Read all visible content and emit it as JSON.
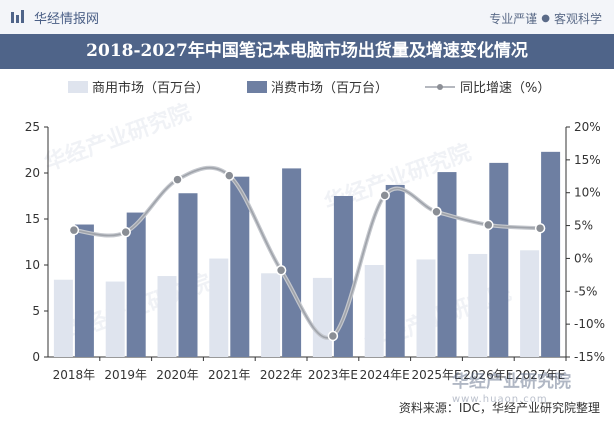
{
  "header": {
    "brand": "华经情报网",
    "slogan_left": "专业严谨",
    "slogan_right": "客观科学"
  },
  "source": "资料来源：IDC，华经产业研究院整理",
  "watermark": {
    "text": "华经产业研究院",
    "url": "www.huaon.com"
  },
  "chart_data": {
    "type": "bar",
    "title": "2018-2027年中国笔记本电脑市场出货量及增速变化情况",
    "categories": [
      "2018年",
      "2019年",
      "2020年",
      "2021年",
      "2022年",
      "2023年E",
      "2024年E",
      "2025年E",
      "2026年E",
      "2027年E"
    ],
    "series": [
      {
        "name": "商用市场（百万台）",
        "kind": "bar",
        "axis": "left",
        "color": "#dfe4ee",
        "values": [
          8.4,
          8.2,
          8.8,
          10.7,
          9.1,
          8.6,
          10.0,
          10.6,
          11.2,
          11.6
        ]
      },
      {
        "name": "消费市场（百万台）",
        "kind": "bar",
        "axis": "left",
        "color": "#6e7fa2",
        "values": [
          14.4,
          15.7,
          17.8,
          19.6,
          20.5,
          17.5,
          18.7,
          20.1,
          21.1,
          22.3
        ]
      },
      {
        "name": "同比增速（%）",
        "kind": "line",
        "axis": "right",
        "color": "#b5b8bf",
        "values": [
          4.3,
          4.0,
          12.0,
          12.6,
          -1.8,
          -11.8,
          9.6,
          7.1,
          5.1,
          4.6
        ]
      }
    ],
    "y_left": {
      "min": 0,
      "max": 25,
      "ticks": [
        0,
        5,
        10,
        15,
        20,
        25
      ]
    },
    "y_right": {
      "min": -15,
      "max": 20,
      "ticks": [
        "-15%",
        "-10%",
        "-5%",
        "0%",
        "5%",
        "10%",
        "15%",
        "20%"
      ],
      "tick_values": [
        -15,
        -10,
        -5,
        0,
        5,
        10,
        15,
        20
      ]
    },
    "legend_placement": "top",
    "grid": false
  }
}
